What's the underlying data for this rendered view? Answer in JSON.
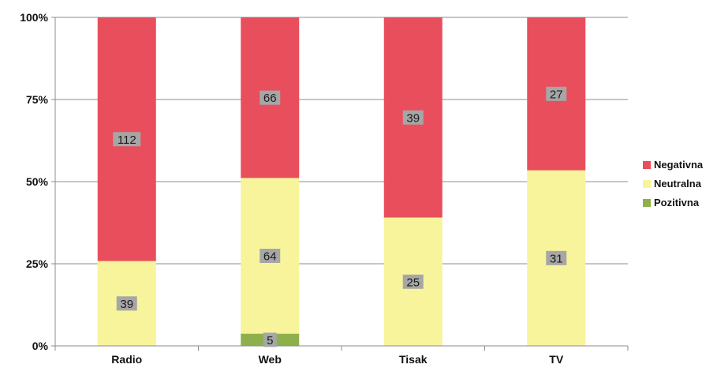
{
  "chart_data": {
    "type": "bar",
    "stacked": true,
    "normalized": true,
    "categories": [
      "Radio",
      "Web",
      "Tisak",
      "TV"
    ],
    "series": [
      {
        "name": "Pozitivna",
        "values": [
          0,
          5,
          0,
          0
        ],
        "color": "#8db04d"
      },
      {
        "name": "Neutralna",
        "values": [
          39,
          64,
          25,
          31
        ],
        "color": "#f7f49b"
      },
      {
        "name": "Negativna",
        "values": [
          112,
          66,
          39,
          27
        ],
        "color": "#e94e5d"
      }
    ],
    "y_ticks": [
      "0%",
      "25%",
      "50%",
      "75%",
      "100%"
    ],
    "ylim": [
      0,
      100
    ],
    "grid": true,
    "legend": {
      "position": "right",
      "order": [
        "Negativna",
        "Neutralna",
        "Pozitivna"
      ]
    },
    "label_box_color": "#a6a6a6"
  }
}
